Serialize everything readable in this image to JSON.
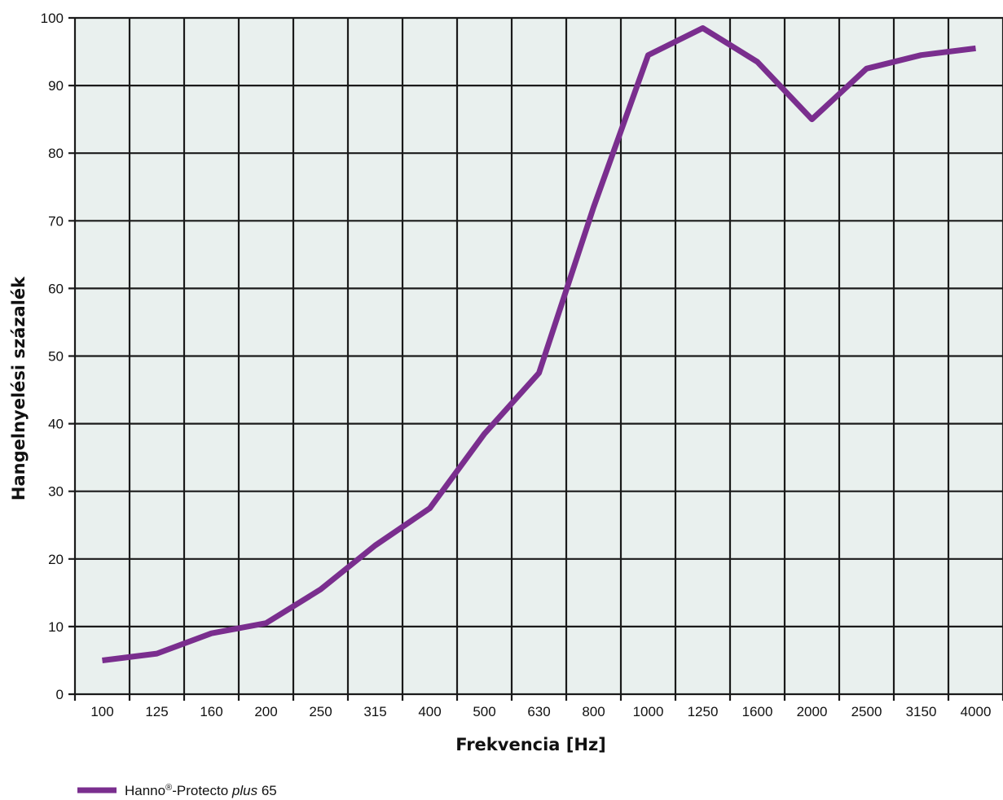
{
  "chart_data": {
    "type": "line",
    "title": "",
    "xlabel": "Frekvencia [Hz]",
    "ylabel": "Hangelnyelési százalék",
    "categories": [
      "100",
      "125",
      "160",
      "200",
      "250",
      "315",
      "400",
      "500",
      "630",
      "800",
      "1000",
      "1250",
      "1600",
      "2000",
      "2500",
      "3150",
      "4000"
    ],
    "ylim": [
      0,
      100
    ],
    "yticks": [
      "0",
      "10",
      "20",
      "30",
      "40",
      "50",
      "60",
      "70",
      "80",
      "90",
      "100"
    ],
    "grid": true,
    "legend_position": "bottom-left",
    "series": [
      {
        "name": "Hanno®-Protecto plus 65",
        "name_parts": {
          "pre": "Hanno",
          "sup": "®",
          "mid": "-Protecto ",
          "italic": "plus",
          "post": " 65"
        },
        "color": "#7a2e8e",
        "values": [
          5,
          6,
          9,
          10.5,
          15.5,
          22,
          27.5,
          38.5,
          47.5,
          72,
          94.5,
          98.5,
          93.5,
          85,
          92.5,
          94.5,
          95.5
        ]
      }
    ],
    "plot_background": "#e9f0ee",
    "grid_color": "#1a1a1a"
  }
}
